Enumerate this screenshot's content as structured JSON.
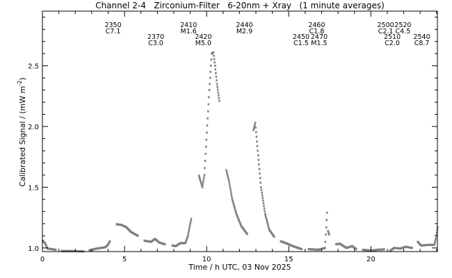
{
  "chart_data": {
    "type": "scatter",
    "title": "Channel 2-4   Zirconium-Filter   6-20nm + Xray   (1 minute averages)",
    "xlabel": "Time / h UTC, 03 Nov 2025",
    "ylabel": "Calibrated Signal / (mW m",
    "ylabel_sup": "-2",
    "ylabel_end": ")",
    "xlim": [
      0,
      24.05
    ],
    "ylim": [
      0.97,
      2.95
    ],
    "xticks": [
      0,
      5,
      10,
      15,
      20
    ],
    "xtick_labels": [
      "0",
      "5",
      "10",
      "15",
      "20"
    ],
    "yticks": [
      1.0,
      1.5,
      2.0,
      2.5
    ],
    "ytick_labels": [
      "1.0",
      "1.5",
      "2.0",
      "2.5"
    ],
    "point_color": "#808080",
    "series": [
      {
        "name": "signal",
        "segments": [
          [
            [
              0.0,
              1.06
            ],
            [
              0.15,
              1.04
            ],
            [
              0.3,
              0.995
            ],
            [
              0.8,
              0.985
            ]
          ],
          [
            [
              1.15,
              0.975
            ],
            [
              2.5,
              0.972
            ]
          ],
          [
            [
              2.85,
              0.98
            ],
            [
              3.3,
              0.995
            ],
            [
              3.8,
              1.005
            ],
            [
              3.95,
              1.02
            ],
            [
              4.1,
              1.055
            ]
          ],
          [
            [
              4.5,
              1.195
            ],
            [
              4.8,
              1.19
            ],
            [
              5.1,
              1.17
            ],
            [
              5.4,
              1.13
            ],
            [
              5.8,
              1.1
            ]
          ],
          [
            [
              6.2,
              1.06
            ],
            [
              6.6,
              1.05
            ],
            [
              6.85,
              1.075
            ],
            [
              7.1,
              1.045
            ],
            [
              7.45,
              1.03
            ]
          ],
          [
            [
              7.9,
              1.02
            ],
            [
              8.1,
              1.015
            ],
            [
              8.4,
              1.04
            ],
            [
              8.7,
              1.04
            ],
            [
              8.85,
              1.1
            ],
            [
              9.05,
              1.24
            ]
          ],
          [
            [
              9.52,
              1.595
            ],
            [
              9.62,
              1.55
            ],
            [
              9.73,
              1.5
            ],
            [
              9.85,
              1.6
            ],
            [
              10.0,
              1.95
            ],
            [
              10.15,
              2.3
            ],
            [
              10.3,
              2.6
            ],
            [
              10.4,
              2.61
            ],
            [
              10.5,
              2.5
            ],
            [
              10.62,
              2.35
            ],
            [
              10.76,
              2.21
            ]
          ],
          [
            [
              11.19,
              1.64
            ],
            [
              11.35,
              1.55
            ],
            [
              11.55,
              1.4
            ],
            [
              11.8,
              1.28
            ],
            [
              12.1,
              1.18
            ],
            [
              12.46,
              1.115
            ]
          ],
          [
            [
              12.84,
              1.97
            ],
            [
              12.95,
              2.03
            ],
            [
              13.1,
              1.8
            ],
            [
              13.3,
              1.5
            ],
            [
              13.55,
              1.28
            ],
            [
              13.8,
              1.15
            ],
            [
              14.1,
              1.093
            ]
          ],
          [
            [
              14.5,
              1.055
            ],
            [
              14.9,
              1.035
            ],
            [
              15.2,
              1.017
            ],
            [
              15.77,
              0.99
            ]
          ],
          [
            [
              16.2,
              0.99
            ],
            [
              16.8,
              0.985
            ],
            [
              17.2,
              1.0
            ]
          ],
          [
            [
              17.22,
              1.05
            ],
            [
              17.28,
              1.17
            ],
            [
              17.32,
              1.29
            ]
          ],
          [
            [
              17.38,
              1.14
            ],
            [
              17.45,
              1.11
            ]
          ],
          [
            [
              17.87,
              1.03
            ],
            [
              18.1,
              1.035
            ],
            [
              18.5,
              1.0
            ],
            [
              18.85,
              1.015
            ],
            [
              19.1,
              0.99
            ]
          ],
          [
            [
              19.5,
              0.985
            ],
            [
              20.0,
              0.978
            ],
            [
              20.4,
              0.985
            ],
            [
              20.8,
              0.988
            ]
          ],
          [
            [
              21.15,
              0.975
            ],
            [
              21.4,
              1.0
            ],
            [
              21.8,
              0.995
            ],
            [
              22.1,
              1.01
            ],
            [
              22.5,
              1.0
            ]
          ],
          [
            [
              22.84,
              1.05
            ],
            [
              23.05,
              1.02
            ],
            [
              23.5,
              1.025
            ],
            [
              23.85,
              1.025
            ],
            [
              23.95,
              1.08
            ],
            [
              24.05,
              1.17
            ]
          ]
        ]
      }
    ],
    "annotations": [
      {
        "id": "2350",
        "class": "C7.1",
        "t": 4.3,
        "row": 0
      },
      {
        "id": "2370",
        "class": "C3.0",
        "t": 6.9,
        "row": 1
      },
      {
        "id": "2410",
        "class": "M1.6",
        "t": 8.9,
        "row": 0
      },
      {
        "id": "2420",
        "class": "M5.0",
        "t": 9.8,
        "row": 1
      },
      {
        "id": "2440",
        "class": "M2.9",
        "t": 12.3,
        "row": 0
      },
      {
        "id": "2450",
        "class": "C1.5",
        "t": 15.75,
        "row": 1
      },
      {
        "id": "2460",
        "class": "C1.8",
        "t": 16.7,
        "row": 0
      },
      {
        "id": "2470",
        "class": "M1.5",
        "t": 16.85,
        "row": 1
      },
      {
        "id": "2500",
        "class": "C2.1",
        "t": 20.9,
        "row": 0
      },
      {
        "id": "2510",
        "class": "C2.0",
        "t": 21.3,
        "row": 1
      },
      {
        "id": "2520",
        "class": "C4.5",
        "t": 21.95,
        "row": 0
      },
      {
        "id": "2540",
        "class": "C8.7",
        "t": 23.1,
        "row": 1
      }
    ]
  }
}
